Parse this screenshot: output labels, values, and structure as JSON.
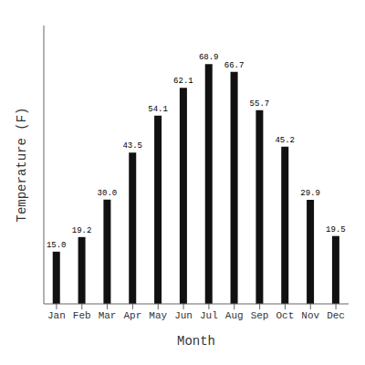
{
  "chart_data": {
    "type": "bar",
    "categories": [
      "Jan",
      "Feb",
      "Mar",
      "Apr",
      "May",
      "Jun",
      "Jul",
      "Aug",
      "Sep",
      "Oct",
      "Nov",
      "Dec"
    ],
    "values": [
      15.0,
      19.2,
      30.0,
      43.5,
      54.1,
      62.1,
      68.9,
      66.7,
      55.7,
      45.2,
      29.9,
      19.5
    ],
    "value_labels": [
      "15.0",
      "19.2",
      "30.0",
      "43.5",
      "54.1",
      "62.1",
      "68.9",
      "66.7",
      "55.7",
      "45.2",
      "29.9",
      "19.5"
    ],
    "data_labels": true,
    "color": "#111111",
    "xlabel": "Month",
    "ylabel": "Temperature (F)",
    "ylim": [
      0,
      80
    ],
    "tick_labels": "x",
    "grid": false
  }
}
